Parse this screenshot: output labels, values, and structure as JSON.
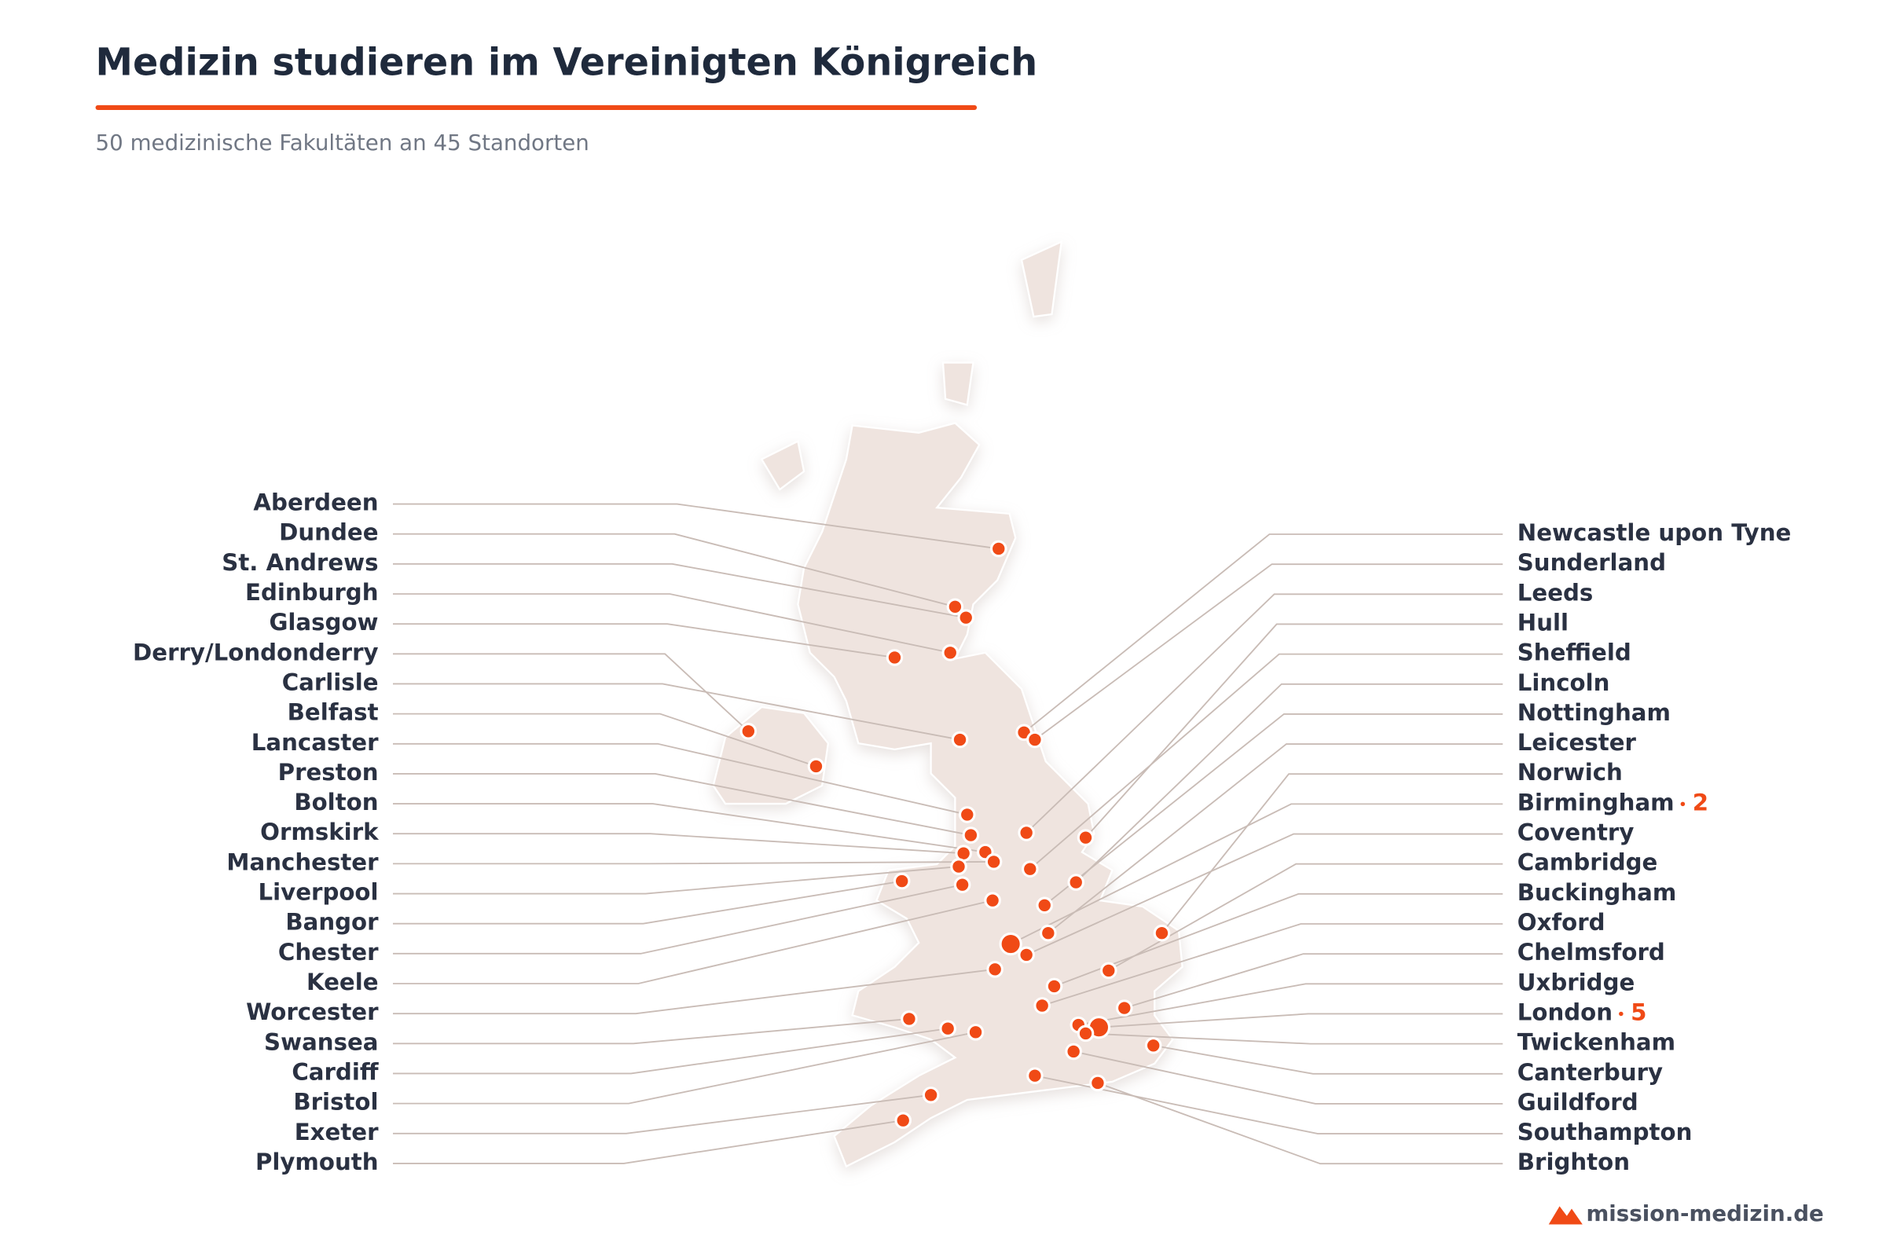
{
  "header": {
    "title": "Medizin studieren im Vereinigten Königreich",
    "subtitle": "50 medizinische Fakultäten an 45 Standorten"
  },
  "left_labels": [
    {
      "name": "Aberdeen"
    },
    {
      "name": "Dundee"
    },
    {
      "name": "St. Andrews"
    },
    {
      "name": "Edinburgh"
    },
    {
      "name": "Glasgow"
    },
    {
      "name": "Derry/Londonderry"
    },
    {
      "name": "Carlisle"
    },
    {
      "name": "Belfast"
    },
    {
      "name": "Lancaster"
    },
    {
      "name": "Preston"
    },
    {
      "name": "Bolton"
    },
    {
      "name": "Ormskirk"
    },
    {
      "name": "Manchester"
    },
    {
      "name": "Liverpool"
    },
    {
      "name": "Bangor"
    },
    {
      "name": "Chester"
    },
    {
      "name": "Keele"
    },
    {
      "name": "Worcester"
    },
    {
      "name": "Swansea"
    },
    {
      "name": "Cardiff"
    },
    {
      "name": "Bristol"
    },
    {
      "name": "Exeter"
    },
    {
      "name": "Plymouth"
    }
  ],
  "right_labels": [
    {
      "name": "Newcastle upon Tyne"
    },
    {
      "name": "Sunderland"
    },
    {
      "name": "Leeds"
    },
    {
      "name": "Hull"
    },
    {
      "name": "Sheffield"
    },
    {
      "name": "Lincoln"
    },
    {
      "name": "Nottingham"
    },
    {
      "name": "Leicester"
    },
    {
      "name": "Norwich"
    },
    {
      "name": "Birmingham",
      "count": 2
    },
    {
      "name": "Coventry"
    },
    {
      "name": "Cambridge"
    },
    {
      "name": "Buckingham"
    },
    {
      "name": "Oxford"
    },
    {
      "name": "Chelmsford"
    },
    {
      "name": "Uxbridge"
    },
    {
      "name": "London",
      "count": 5
    },
    {
      "name": "Twickenham"
    },
    {
      "name": "Canterbury"
    },
    {
      "name": "Guildford"
    },
    {
      "name": "Southampton"
    },
    {
      "name": "Brighton"
    }
  ],
  "footer": {
    "brand": "mission-medizin.de"
  }
}
